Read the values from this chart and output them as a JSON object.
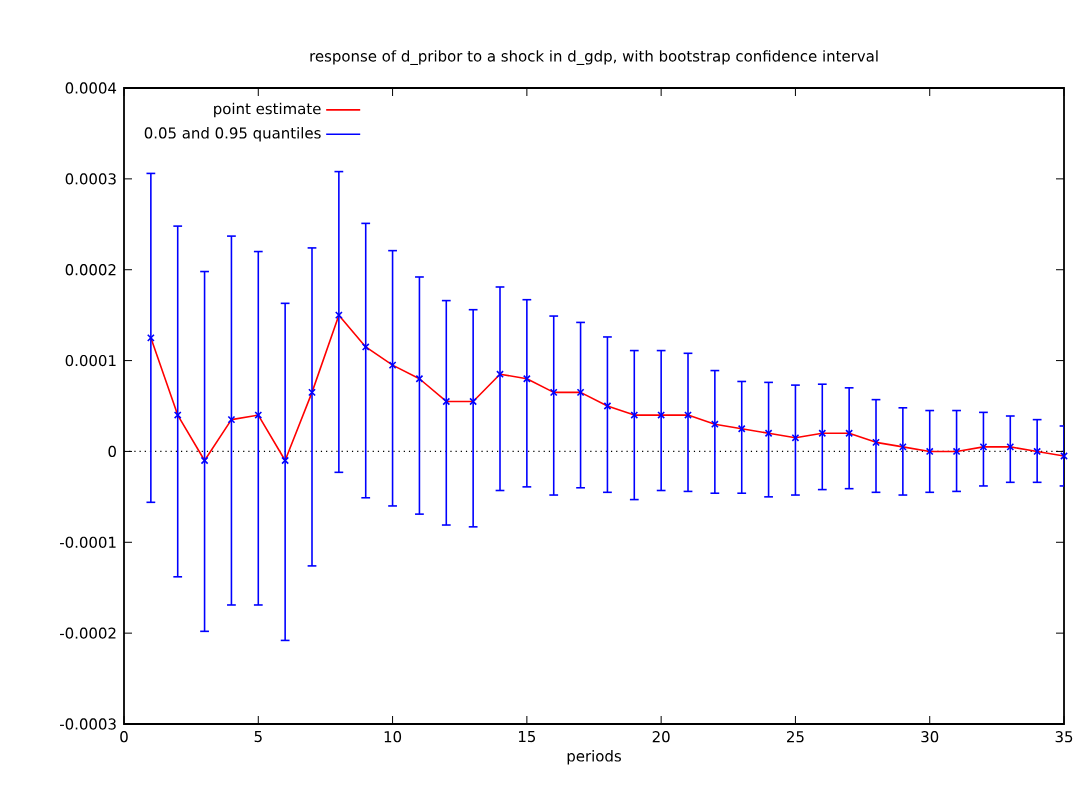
{
  "chart_data": {
    "type": "line",
    "title": "response of d_pribor to a shock in d_gdp, with bootstrap confidence interval",
    "xlabel": "periods",
    "x": [
      1,
      2,
      3,
      4,
      5,
      6,
      7,
      8,
      9,
      10,
      11,
      12,
      13,
      14,
      15,
      16,
      17,
      18,
      19,
      20,
      21,
      22,
      23,
      24,
      25,
      26,
      27,
      28,
      29,
      30,
      31,
      32,
      33,
      34,
      35
    ],
    "series": [
      {
        "name": "point estimate",
        "color": "#ff0000",
        "marker": "none",
        "values": [
          0.000125,
          4e-05,
          -1e-05,
          3.5e-05,
          4e-05,
          -1e-05,
          6.5e-05,
          0.00015,
          0.000115,
          9.5e-05,
          8e-05,
          5.5e-05,
          5.5e-05,
          8.5e-05,
          8e-05,
          6.5e-05,
          6.5e-05,
          5e-05,
          4e-05,
          4e-05,
          4e-05,
          3e-05,
          2.5e-05,
          2e-05,
          1.5e-05,
          2e-05,
          2e-05,
          1e-05,
          5e-06,
          0,
          0,
          5e-06,
          5e-06,
          0,
          -5e-06
        ]
      },
      {
        "name": "0.05 and 0.95 quantiles",
        "color": "#0000ff",
        "type": "scatter",
        "marker": "cross",
        "values": [
          0.000125,
          4e-05,
          -1e-05,
          3.5e-05,
          4e-05,
          -1e-05,
          6.5e-05,
          0.00015,
          0.000115,
          9.5e-05,
          8e-05,
          5.5e-05,
          5.5e-05,
          8.5e-05,
          8e-05,
          6.5e-05,
          6.5e-05,
          5e-05,
          4e-05,
          4e-05,
          4e-05,
          3e-05,
          2.5e-05,
          2e-05,
          1.5e-05,
          2e-05,
          2e-05,
          1e-05,
          5e-06,
          0,
          0,
          5e-06,
          5e-06,
          0,
          -5e-06
        ],
        "errors": [
          [
            -5.6e-05,
            0.000306
          ],
          [
            -0.000138,
            0.000248
          ],
          [
            -0.000198,
            0.000198
          ],
          [
            -0.000169,
            0.000237
          ],
          [
            -0.000169,
            0.00022
          ],
          [
            -0.000208,
            0.000163
          ],
          [
            -0.000126,
            0.000224
          ],
          [
            -2.3e-05,
            0.000308
          ],
          [
            -5.1e-05,
            0.000251
          ],
          [
            -6e-05,
            0.000221
          ],
          [
            -6.9e-05,
            0.000192
          ],
          [
            -8.1e-05,
            0.000166
          ],
          [
            -8.3e-05,
            0.000156
          ],
          [
            -4.3e-05,
            0.000181
          ],
          [
            -3.9e-05,
            0.000167
          ],
          [
            -4.8e-05,
            0.000149
          ],
          [
            -4e-05,
            0.000142
          ],
          [
            -4.5e-05,
            0.000126
          ],
          [
            -5.3e-05,
            0.000111
          ],
          [
            -4.3e-05,
            0.000111
          ],
          [
            -4.4e-05,
            0.000108
          ],
          [
            -4.6e-05,
            8.9e-05
          ],
          [
            -4.6e-05,
            7.7e-05
          ],
          [
            -5e-05,
            7.6e-05
          ],
          [
            -4.8e-05,
            7.3e-05
          ],
          [
            -4.2e-05,
            7.4e-05
          ],
          [
            -4.1e-05,
            7e-05
          ],
          [
            -4.5e-05,
            5.7e-05
          ],
          [
            -4.8e-05,
            4.8e-05
          ],
          [
            -4.5e-05,
            4.5e-05
          ],
          [
            -4.4e-05,
            4.5e-05
          ],
          [
            -3.8e-05,
            4.3e-05
          ],
          [
            -3.4e-05,
            3.9e-05
          ],
          [
            -3.4e-05,
            3.5e-05
          ],
          [
            -3.8e-05,
            2.8e-05
          ]
        ]
      }
    ],
    "xlim": [
      0,
      35
    ],
    "ylim": [
      -0.0003,
      0.0004
    ],
    "xticks": [
      0,
      5,
      10,
      15,
      20,
      25,
      30,
      35
    ],
    "yticks": [
      -0.0003,
      -0.0002,
      -0.0001,
      0,
      0.0001,
      0.0002,
      0.0003,
      0.0004
    ],
    "ref_lines": [
      {
        "axis": "y",
        "value": 0,
        "color": "#000000",
        "line_style": "dotted"
      }
    ],
    "legend": "top left",
    "grid": false
  }
}
